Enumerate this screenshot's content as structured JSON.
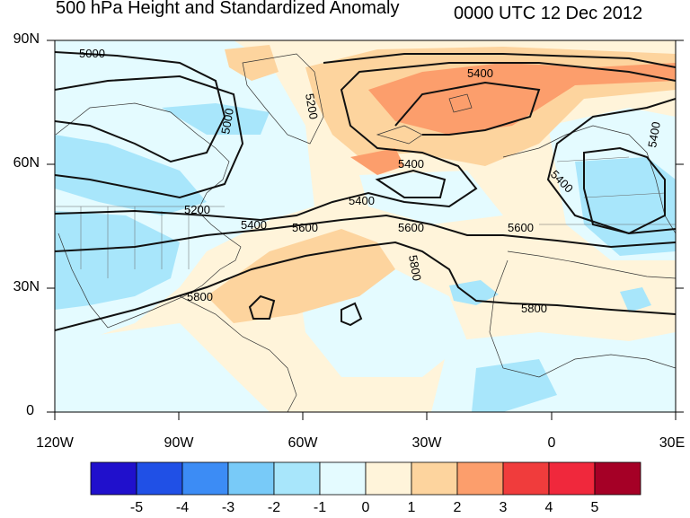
{
  "figure": {
    "title_left": "500 hPa Height and Standardized Anomaly",
    "title_right": "0000 UTC 12 Dec 2012"
  },
  "axes": {
    "x_ticks": [
      "120W",
      "90W",
      "60W",
      "30W",
      "0",
      "30E"
    ],
    "y_ticks": [
      "90N",
      "60N",
      "30N",
      "0"
    ]
  },
  "contour_labels": [
    "5000",
    "5200",
    "5400",
    "5600",
    "5800"
  ],
  "colorbar": {
    "labels": [
      "-5",
      "-4",
      "-3",
      "-2",
      "-1",
      "0",
      "1",
      "2",
      "3",
      "4",
      "5"
    ],
    "colors": [
      "#2010cc",
      "#2050e6",
      "#3c8cf5",
      "#78caf8",
      "#a8e6fb",
      "#e4fbff",
      "#fff4da",
      "#fdd49e",
      "#fc9e6c",
      "#f03c3c",
      "#f0283c",
      "#a50026"
    ]
  },
  "anomaly_colors": {
    "neg_weak": "#e4fbff",
    "neg_mod": "#a8e6fb",
    "pos_weak": "#fff4da",
    "pos_mod": "#fdd49e",
    "pos_strong": "#fc9e6c"
  }
}
